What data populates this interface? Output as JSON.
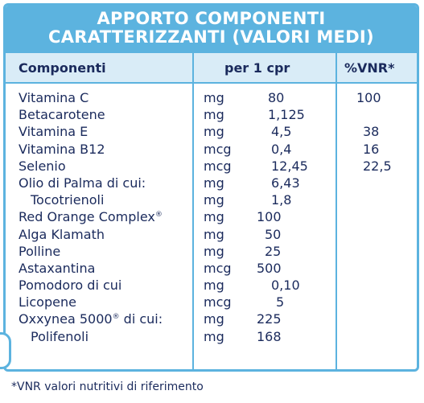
{
  "title": {
    "line1": "APPORTO COMPONENTI",
    "line2": "CARATTERIZZANTI (VALORI MEDI)"
  },
  "columns": {
    "name": "Componenti",
    "amount": "per 1 cpr",
    "vnr": "%VNR*"
  },
  "rows": [
    {
      "name": "Vitamina C",
      "unit": "mg",
      "value": "80",
      "vnr": "100"
    },
    {
      "name": "Betacarotene",
      "unit": "mg",
      "value": "1,125",
      "vnr": ""
    },
    {
      "name": "Vitamina E",
      "unit": "mg",
      "value": "4,5",
      "vnr": "38"
    },
    {
      "name": "Vitamina B12",
      "unit": "mcg",
      "value": "0,4",
      "vnr": "16"
    },
    {
      "name": "Selenio",
      "unit": "mcg",
      "value": "12,45",
      "vnr": "22,5"
    },
    {
      "name": "Olio di Palma di cui:",
      "unit": "mg",
      "value": "6,43",
      "vnr": ""
    },
    {
      "name": "Tocotrienoli",
      "unit": "mg",
      "value": "1,8",
      "vnr": ""
    },
    {
      "name": "Red Orange Complex",
      "sup": "®",
      "unit": "mg",
      "value": "100",
      "vnr": ""
    },
    {
      "name": "Alga Klamath",
      "unit": "mg",
      "value": "50",
      "vnr": ""
    },
    {
      "name": "Polline",
      "unit": "mg",
      "value": "25",
      "vnr": ""
    },
    {
      "name": "Astaxantina",
      "unit": "mcg",
      "value": "500",
      "vnr": ""
    },
    {
      "name": "Pomodoro di cui",
      "unit": "mg",
      "value": "0,10",
      "vnr": ""
    },
    {
      "name": "Licopene",
      "unit": "mcg",
      "value": "5",
      "vnr": ""
    },
    {
      "name": "Oxxynea 5000",
      "sup": "®",
      "name_suffix": " di cui:",
      "unit": "mg",
      "value": "225",
      "vnr": ""
    },
    {
      "name": "Polifenoli",
      "unit": "mg",
      "value": "168",
      "vnr": ""
    }
  ],
  "footnote": "*VNR valori nutritivi di riferimento",
  "colors": {
    "accent": "#5cb3df",
    "header_band": "#d9ecf7",
    "text": "#1a2a5c"
  }
}
